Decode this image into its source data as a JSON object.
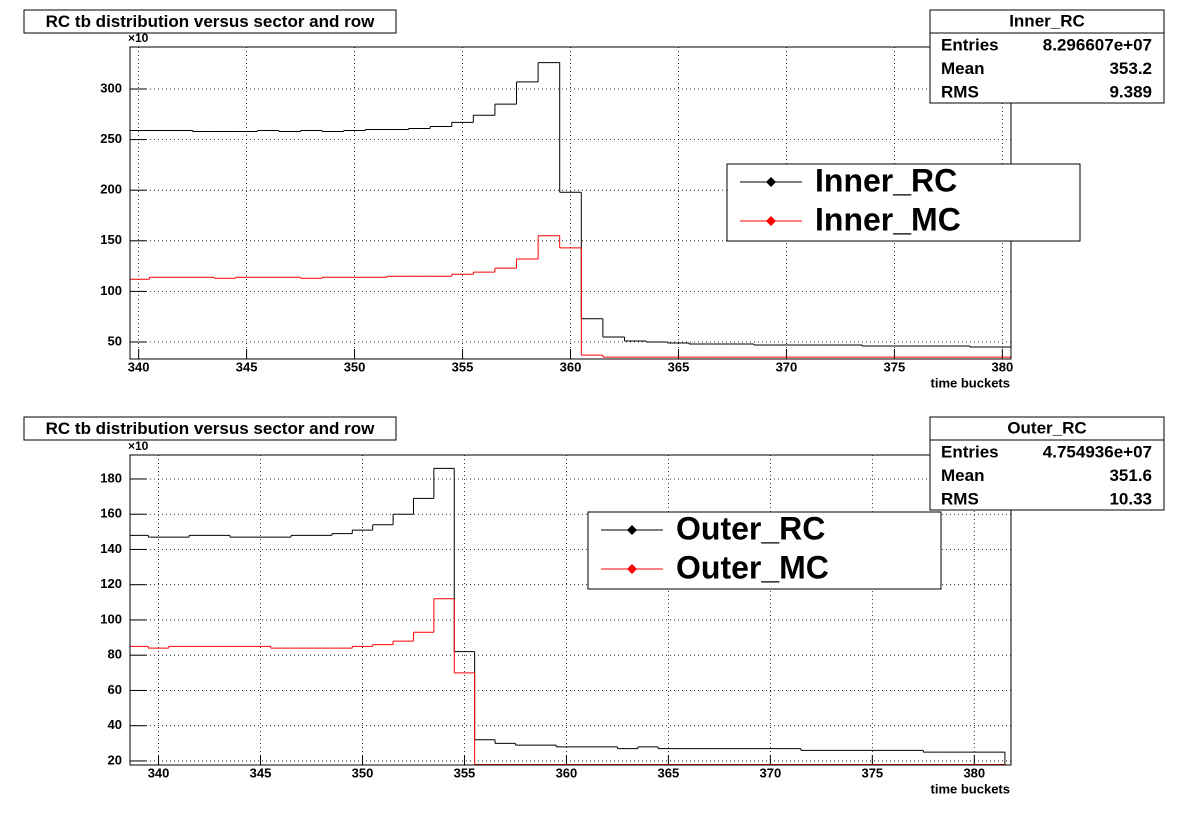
{
  "chart_data": [
    {
      "type": "histogram",
      "title": "RC tb distribution versus sector and row",
      "xlabel": "time buckets",
      "y_multiplier": "×10",
      "bins": [
        339.5,
        340.5,
        341.5,
        342.5,
        343.5,
        344.5,
        345.5,
        346.5,
        347.5,
        348.5,
        349.5,
        350.5,
        351.5,
        352.5,
        353.5,
        354.5,
        355.5,
        356.5,
        357.5,
        358.5,
        359.5,
        360.5,
        361.5,
        362.5,
        363.5,
        364.5,
        365.5,
        366.5,
        367.5,
        368.5,
        369.5,
        370.5,
        371.5,
        372.5,
        373.5,
        374.5,
        375.5,
        376.5,
        377.5,
        378.5,
        379.5,
        380.5
      ],
      "series": [
        {
          "name": "Inner_RC",
          "color": "#000000",
          "values": [
            259,
            259,
            259,
            258,
            258,
            258,
            259,
            258,
            259,
            258,
            259,
            260,
            260,
            261,
            263,
            267,
            274,
            285,
            307,
            326,
            198,
            73,
            55,
            51,
            50,
            49,
            48,
            48,
            48,
            47,
            47,
            47,
            47,
            47,
            46,
            46,
            46,
            46,
            46,
            45,
            45
          ]
        },
        {
          "name": "Inner_MC",
          "color": "#ff0000",
          "values": [
            112,
            114,
            114,
            114,
            113,
            114,
            114,
            114,
            113,
            114,
            114,
            114,
            115,
            115,
            115,
            117,
            119,
            123,
            132,
            155,
            143,
            37,
            35,
            35,
            35,
            35,
            35,
            35,
            35,
            35,
            35,
            35,
            35,
            35,
            35,
            35,
            35,
            35,
            35,
            35,
            35
          ]
        }
      ],
      "xlim": [
        339.6,
        380.4
      ],
      "ylim": [
        33.2,
        341.5
      ],
      "xticks": [
        340,
        345,
        350,
        355,
        360,
        365,
        370,
        375,
        380
      ],
      "yticks": [
        50,
        100,
        150,
        200,
        250,
        300
      ],
      "grid": true,
      "stats": {
        "title": "Inner_RC",
        "rows": [
          [
            "Entries",
            "8.296607e+07"
          ],
          [
            "Mean",
            "353.2"
          ],
          [
            "RMS",
            "9.389"
          ]
        ]
      }
    },
    {
      "type": "histogram",
      "title": "RC tb distribution versus sector and row",
      "xlabel": "time buckets",
      "y_multiplier": "×10",
      "bins": [
        338.5,
        339.5,
        340.5,
        341.5,
        342.5,
        343.5,
        344.5,
        345.5,
        346.5,
        347.5,
        348.5,
        349.5,
        350.5,
        351.5,
        352.5,
        353.5,
        354.5,
        355.5,
        356.5,
        357.5,
        358.5,
        359.5,
        360.5,
        361.5,
        362.5,
        363.5,
        364.5,
        365.5,
        366.5,
        367.5,
        368.5,
        369.5,
        370.5,
        371.5,
        372.5,
        373.5,
        374.5,
        375.5,
        376.5,
        377.5,
        378.5,
        379.5,
        380.5,
        381.5
      ],
      "series": [
        {
          "name": "Outer_RC",
          "color": "#000000",
          "values": [
            148,
            147,
            147,
            148,
            148,
            147,
            147,
            147,
            148,
            148,
            149,
            151,
            154,
            160,
            169,
            186,
            82,
            32,
            30,
            29,
            29,
            28,
            28,
            28,
            27,
            28,
            27,
            27,
            27,
            27,
            27,
            27,
            27,
            26,
            26,
            26,
            26,
            26,
            26,
            25,
            25,
            25,
            25
          ]
        },
        {
          "name": "Outer_MC",
          "color": "#ff0000",
          "values": [
            85,
            84,
            85,
            85,
            85,
            85,
            85,
            84,
            84,
            84,
            84,
            85,
            86,
            88,
            93,
            112,
            70,
            18,
            18,
            18,
            18,
            18,
            18,
            18,
            18,
            18,
            18,
            18,
            18,
            18,
            18,
            18,
            18,
            18,
            18,
            18,
            18,
            18,
            18,
            18,
            18,
            18,
            18
          ]
        }
      ],
      "xlim": [
        338.6,
        381.8
      ],
      "ylim": [
        17.7,
        193.6
      ],
      "xticks": [
        340,
        345,
        350,
        355,
        360,
        365,
        370,
        375,
        380
      ],
      "yticks": [
        20,
        40,
        60,
        80,
        100,
        120,
        140,
        160,
        180
      ],
      "grid": true,
      "stats": {
        "title": "Outer_RC",
        "rows": [
          [
            "Entries",
            "4.754936e+07"
          ],
          [
            "Mean",
            "351.6"
          ],
          [
            "RMS",
            "10.33"
          ]
        ]
      }
    }
  ]
}
